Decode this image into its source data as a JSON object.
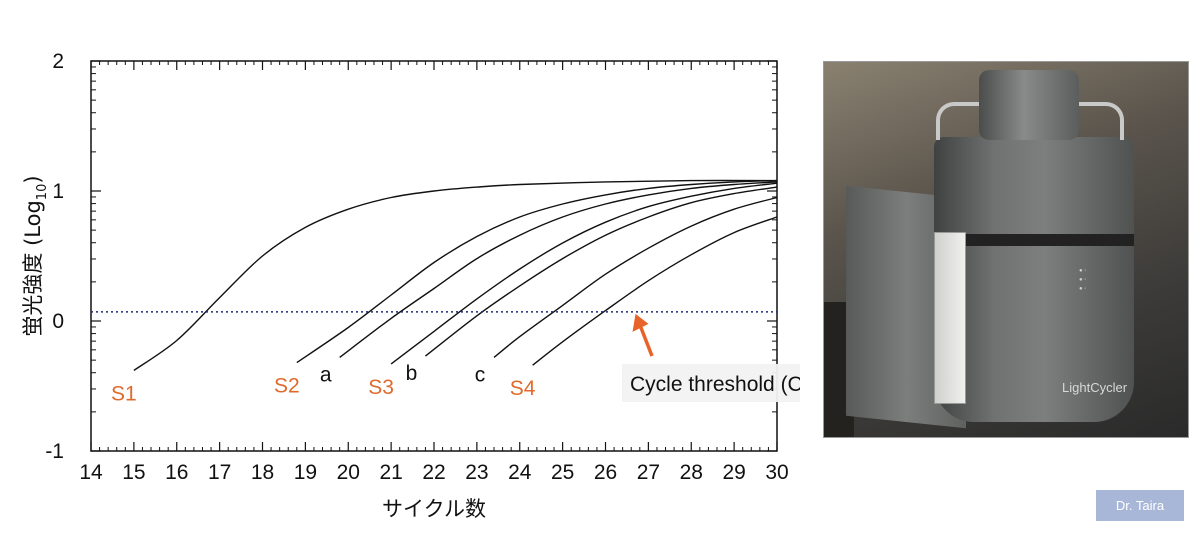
{
  "chart_data": {
    "type": "line",
    "xlabel": "サイクル数",
    "ylabel": "蛍光強度 (Log",
    "ylabel_sub": "10",
    "ylabel_end": ")",
    "xlim": [
      14,
      30
    ],
    "ylim": [
      -1,
      2
    ],
    "x_ticks": [
      "14",
      "15",
      "16",
      "17",
      "18",
      "19",
      "20",
      "21",
      "22",
      "23",
      "24",
      "25",
      "26",
      "27",
      "28",
      "29",
      "30"
    ],
    "y_ticks": [
      "2",
      "1",
      "0",
      "-1"
    ],
    "threshold": {
      "y": 0.07,
      "color": "#1c2a7a"
    },
    "series": [
      {
        "name": "S1",
        "label_color": "#e06a2c",
        "start_x": 15.0,
        "mid_x": 17.3,
        "points": [
          [
            15.0,
            -0.38
          ],
          [
            16.0,
            -0.15
          ],
          [
            17.0,
            0.18
          ],
          [
            18.0,
            0.5
          ],
          [
            19.0,
            0.72
          ],
          [
            20.0,
            0.86
          ],
          [
            21.0,
            0.95
          ],
          [
            22.0,
            1.0
          ],
          [
            23.0,
            1.03
          ],
          [
            24.0,
            1.05
          ],
          [
            26.0,
            1.07
          ],
          [
            28.0,
            1.08
          ],
          [
            30.0,
            1.08
          ]
        ]
      },
      {
        "name": "S2",
        "label_color": "#e06a2c",
        "start_x": 18.8,
        "mid_x": 22.0,
        "points": [
          [
            18.8,
            -0.32
          ],
          [
            20.0,
            -0.05
          ],
          [
            21.0,
            0.2
          ],
          [
            22.0,
            0.45
          ],
          [
            23.0,
            0.65
          ],
          [
            24.0,
            0.8
          ],
          [
            25.0,
            0.9
          ],
          [
            26.0,
            0.97
          ],
          [
            27.0,
            1.02
          ],
          [
            28.0,
            1.05
          ],
          [
            29.0,
            1.07
          ],
          [
            30.0,
            1.08
          ]
        ]
      },
      {
        "name": "a",
        "label_color": "#111111",
        "start_x": 19.8,
        "mid_x": 23.2,
        "points": [
          [
            19.8,
            -0.28
          ],
          [
            21.0,
            0.02
          ],
          [
            22.0,
            0.25
          ],
          [
            23.0,
            0.48
          ],
          [
            24.0,
            0.66
          ],
          [
            25.0,
            0.8
          ],
          [
            26.0,
            0.9
          ],
          [
            27.0,
            0.97
          ],
          [
            28.0,
            1.02
          ],
          [
            29.0,
            1.05
          ],
          [
            30.0,
            1.07
          ]
        ]
      },
      {
        "name": "S3",
        "label_color": "#e06a2c",
        "start_x": 21.0,
        "mid_x": 24.2,
        "points": [
          [
            21.0,
            -0.33
          ],
          [
            22.0,
            -0.08
          ],
          [
            23.0,
            0.17
          ],
          [
            24.0,
            0.4
          ],
          [
            25.0,
            0.6
          ],
          [
            26.0,
            0.76
          ],
          [
            27.0,
            0.88
          ],
          [
            28.0,
            0.96
          ],
          [
            29.0,
            1.02
          ],
          [
            30.0,
            1.06
          ]
        ]
      },
      {
        "name": "b",
        "label_color": "#111111",
        "start_x": 21.8,
        "mid_x": 24.9,
        "points": [
          [
            21.8,
            -0.27
          ],
          [
            23.0,
            0.04
          ],
          [
            24.0,
            0.27
          ],
          [
            25.0,
            0.48
          ],
          [
            26.0,
            0.66
          ],
          [
            27.0,
            0.8
          ],
          [
            28.0,
            0.91
          ],
          [
            29.0,
            0.98
          ],
          [
            30.0,
            1.03
          ]
        ]
      },
      {
        "name": "c",
        "label_color": "#111111",
        "start_x": 23.4,
        "mid_x": 26.2,
        "points": [
          [
            23.4,
            -0.28
          ],
          [
            24.0,
            -0.12
          ],
          [
            25.0,
            0.12
          ],
          [
            26.0,
            0.36
          ],
          [
            27.0,
            0.56
          ],
          [
            28.0,
            0.73
          ],
          [
            29.0,
            0.86
          ],
          [
            30.0,
            0.95
          ]
        ]
      },
      {
        "name": "S4",
        "label_color": "#e06a2c",
        "start_x": 24.3,
        "mid_x": 27.2,
        "points": [
          [
            24.3,
            -0.34
          ],
          [
            25.0,
            -0.16
          ],
          [
            26.0,
            0.08
          ],
          [
            27.0,
            0.31
          ],
          [
            28.0,
            0.51
          ],
          [
            29.0,
            0.68
          ],
          [
            30.0,
            0.8
          ]
        ]
      }
    ],
    "annotation": {
      "text": "Cycle threshold (Ct) 値",
      "arrow_color": "#e8632a",
      "target_x": 26.7,
      "target_y": 0.07
    }
  },
  "photo": {
    "brand_text": "LightCycler"
  },
  "credit": "Dr. Taira"
}
